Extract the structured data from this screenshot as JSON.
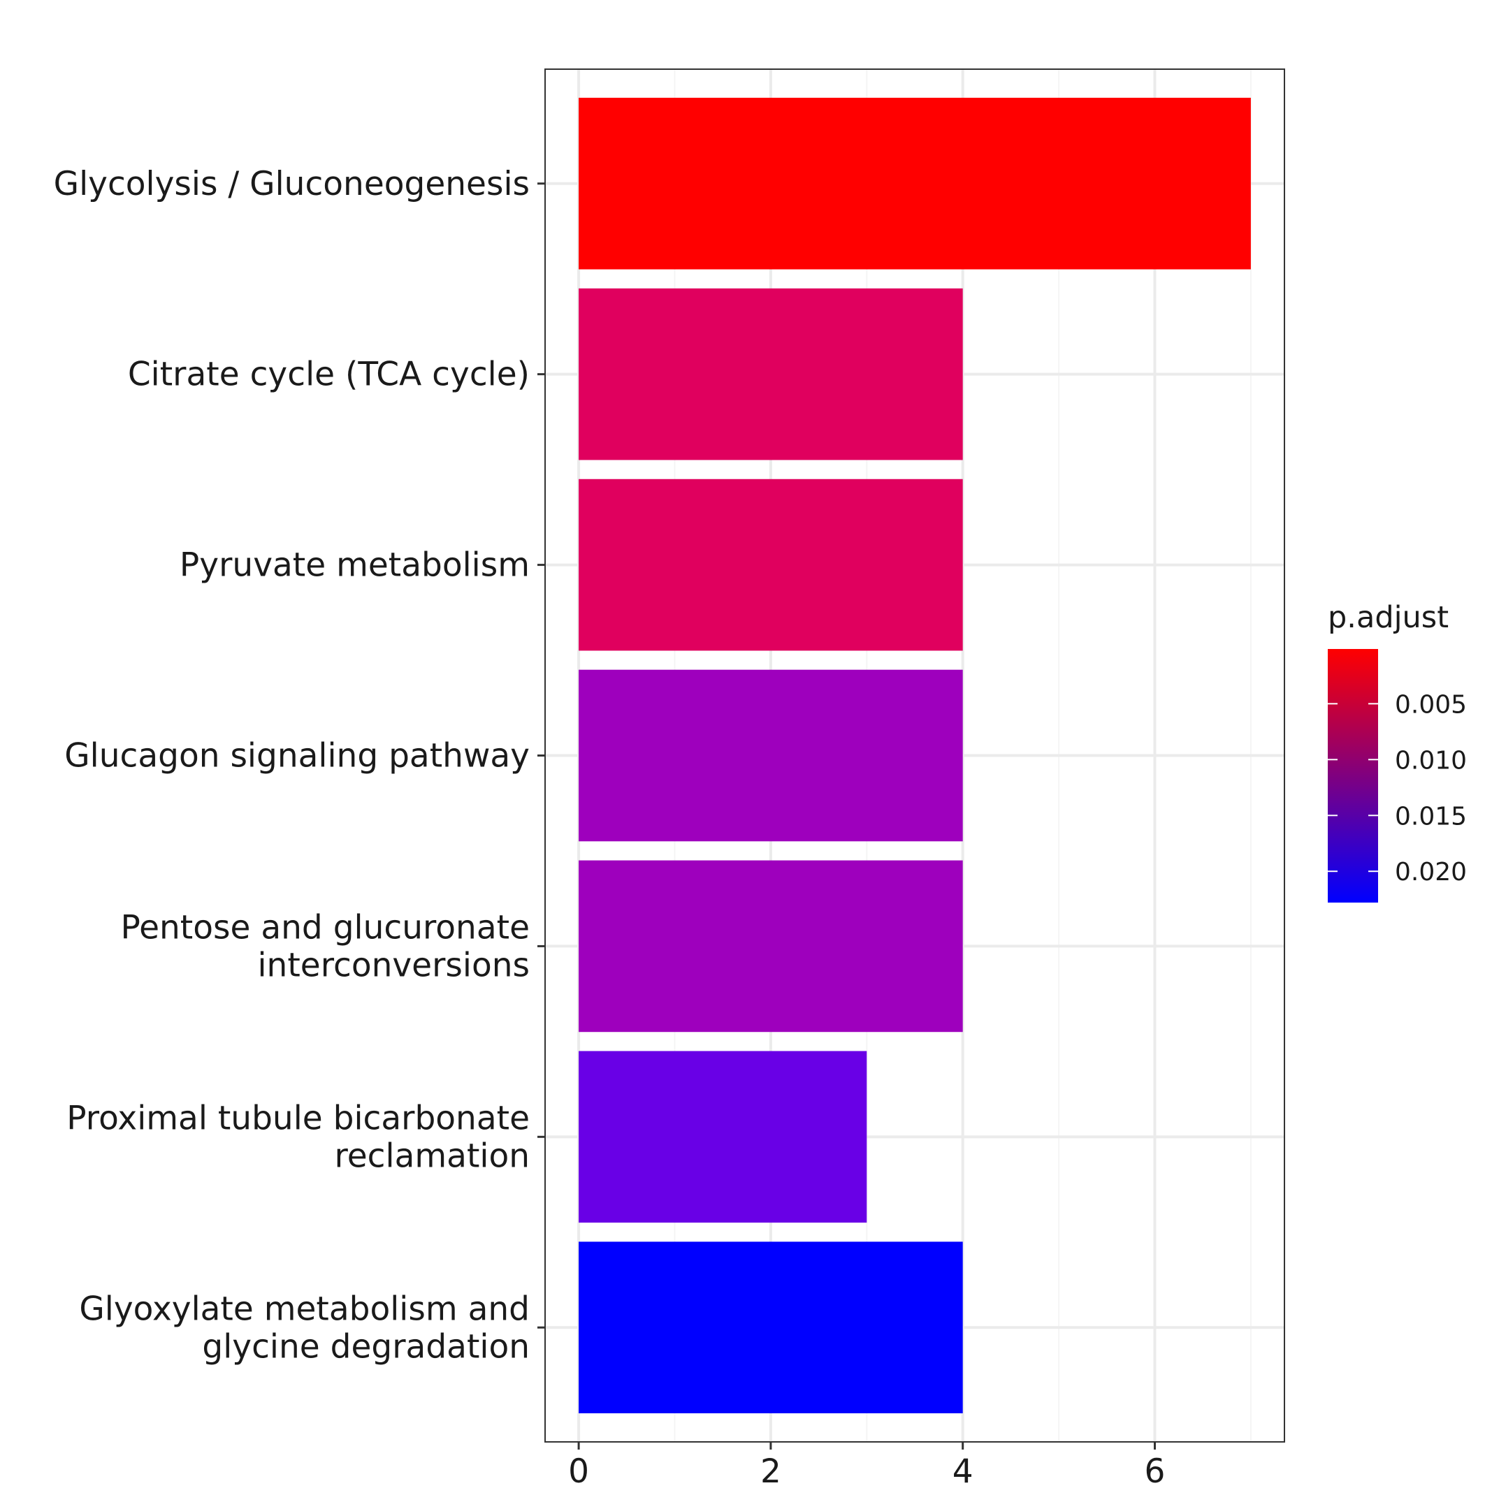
{
  "chart_data": {
    "type": "bar",
    "orientation": "horizontal",
    "categories": [
      [
        "Glycolysis / Gluconeogenesis"
      ],
      [
        "Citrate cycle (TCA cycle)"
      ],
      [
        "Pyruvate metabolism"
      ],
      [
        "Glucagon signaling pathway"
      ],
      [
        "Pentose and glucuronate",
        "interconversions"
      ],
      [
        "Proximal tubule bicarbonate",
        "reclamation"
      ],
      [
        "Glyoxylate metabolism and",
        "glycine degradation"
      ]
    ],
    "values": [
      7,
      4,
      4,
      4,
      4,
      3,
      4
    ],
    "p_adjust": [
      0.0001,
      0.0083,
      0.0083,
      0.0165,
      0.0165,
      0.0193,
      0.0228
    ],
    "bar_colors": [
      "#FF0000",
      "#E0005E",
      "#E0005E",
      "#9E00BD",
      "#9E00BD",
      "#6900E6",
      "#0000FF"
    ],
    "xlim": [
      -0.35,
      7.35
    ],
    "xticks": [
      0,
      2,
      4,
      6
    ],
    "xtick_labels": [
      "0",
      "2",
      "4",
      "6"
    ],
    "grid": true,
    "legend": {
      "title": "p.adjust",
      "position": "right",
      "range": [
        0.0001,
        0.0228
      ],
      "ticks": [
        0.005,
        0.01,
        0.015,
        0.02
      ],
      "tick_labels": [
        "0.005",
        "0.010",
        "0.015",
        "0.020"
      ],
      "color_high": "#FF0000",
      "color_low": "#0000FF"
    }
  }
}
